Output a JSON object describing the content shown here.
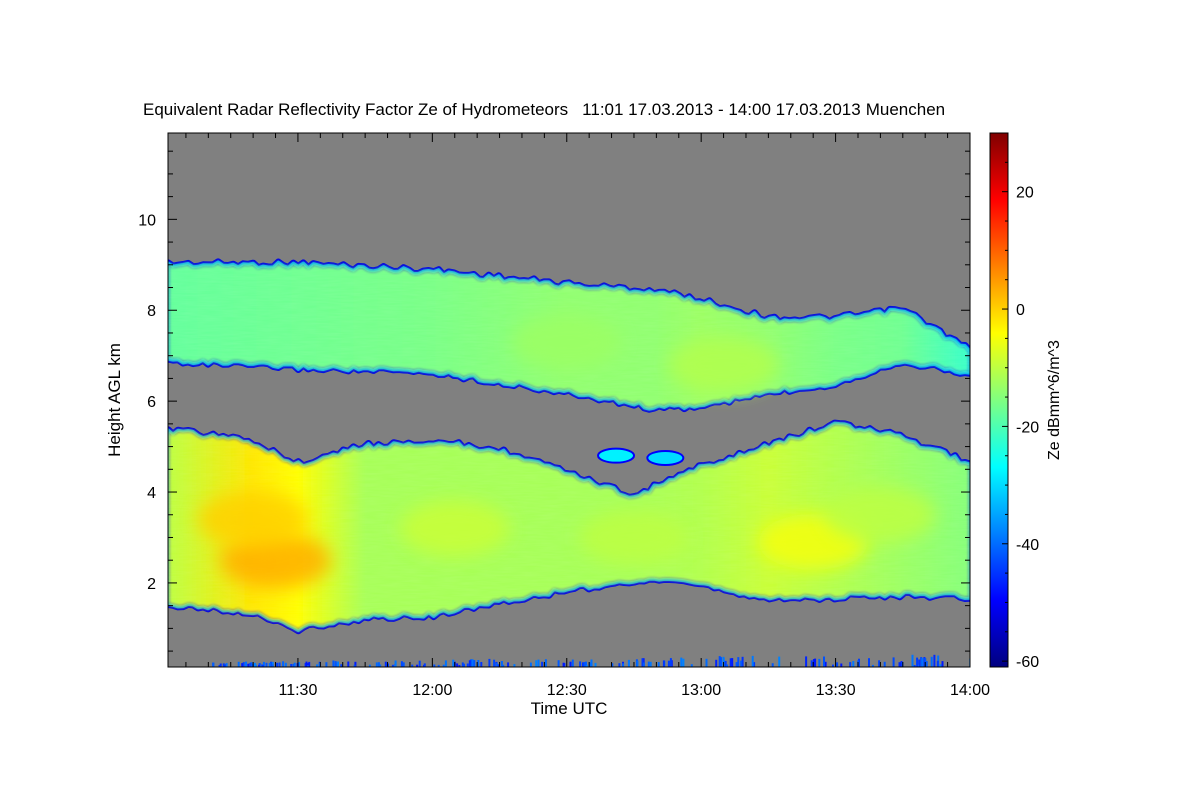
{
  "chart_data": {
    "type": "heatmap",
    "title": "Equivalent Radar Reflectivity Factor Ze of Hydrometeors",
    "period": "11:01 17.03.2013 - 14:00 17.03.2013",
    "location": "Muenchen",
    "xlabel": "Time UTC",
    "ylabel": "Height AGL km",
    "xlim": [
      "11:01",
      "14:00"
    ],
    "x_ticks": [
      "11:30",
      "12:00",
      "12:30",
      "13:00",
      "13:30",
      "14:00"
    ],
    "ylim": [
      0.15,
      11.9
    ],
    "y_ticks": [
      2,
      4,
      6,
      8,
      10
    ],
    "colorbar": {
      "label": "Ze dBmm^6/m^3",
      "range": [
        -61,
        30
      ],
      "ticks": [
        -60,
        -40,
        -20,
        0,
        20
      ],
      "colormap": [
        "#00007f",
        "#0000ff",
        "#0080ff",
        "#00ffff",
        "#80ff80",
        "#ffff00",
        "#ff8000",
        "#ff0000",
        "#800000"
      ]
    },
    "background_color": "#808080",
    "layers": [
      {
        "name": "upper cloud layer",
        "profile": [
          [
            "11:01",
            6.9,
            9.0,
            -18
          ],
          [
            "11:30",
            6.75,
            9.0,
            -17
          ],
          [
            "12:00",
            6.65,
            8.85,
            -16
          ],
          [
            "12:30",
            6.2,
            8.55,
            -14
          ],
          [
            "12:50",
            5.85,
            8.4,
            -14
          ],
          [
            "13:00",
            5.9,
            8.2,
            -13
          ],
          [
            "13:15",
            6.2,
            7.8,
            -14
          ],
          [
            "13:30",
            6.4,
            7.8,
            -16
          ],
          [
            "13:45",
            6.9,
            8.0,
            -17
          ],
          [
            "14:00",
            6.6,
            7.1,
            -22
          ]
        ]
      },
      {
        "name": "lower precipitation layer",
        "profile": [
          [
            "11:01",
            1.55,
            5.35,
            -10
          ],
          [
            "11:20",
            1.35,
            5.1,
            -2
          ],
          [
            "11:30",
            1.0,
            4.6,
            -4
          ],
          [
            "11:45",
            1.25,
            5.0,
            -12
          ],
          [
            "12:00",
            1.3,
            5.1,
            -12
          ],
          [
            "12:15",
            1.6,
            4.9,
            -12
          ],
          [
            "12:30",
            1.85,
            4.4,
            -12
          ],
          [
            "12:45",
            2.05,
            3.9,
            -12
          ],
          [
            "13:00",
            2.0,
            4.55,
            -11
          ],
          [
            "13:15",
            1.65,
            5.0,
            -9
          ],
          [
            "13:30",
            1.7,
            5.5,
            -11
          ],
          [
            "13:45",
            1.75,
            5.2,
            -13
          ],
          [
            "14:00",
            1.7,
            4.6,
            -15
          ]
        ]
      }
    ],
    "cores": [
      {
        "time": "11:25",
        "height": 2.5,
        "ze": 3
      },
      {
        "time": "11:20",
        "height": 3.4,
        "ze": 0
      },
      {
        "time": "12:05",
        "height": 3.2,
        "ze": -9
      },
      {
        "time": "12:45",
        "height": 3.0,
        "ze": -10
      },
      {
        "time": "13:25",
        "height": 2.9,
        "ze": -5
      },
      {
        "time": "13:40",
        "height": 3.5,
        "ze": -10
      },
      {
        "time": "12:30",
        "height": 7.3,
        "ze": -13
      },
      {
        "time": "13:05",
        "height": 6.8,
        "ze": -11
      }
    ],
    "fragments": [
      {
        "time": "12:41",
        "height": 4.8,
        "ze": -28
      },
      {
        "time": "12:52",
        "height": 4.75,
        "ze": -30
      }
    ],
    "ground_clutter": {
      "height_max": 0.35,
      "ze": -38
    }
  }
}
